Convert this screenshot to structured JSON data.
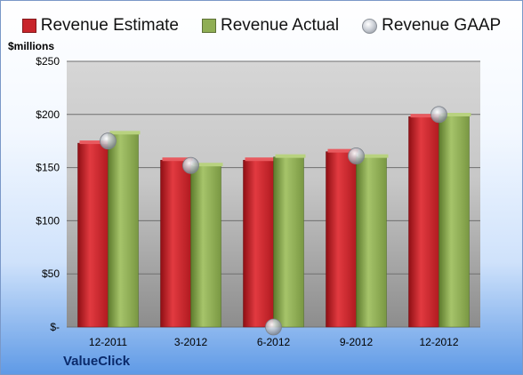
{
  "chart_data": {
    "type": "bar",
    "categories": [
      "12-2011",
      "3-2012",
      "6-2012",
      "9-2012",
      "12-2012"
    ],
    "series": [
      {
        "name": "Revenue Estimate",
        "values": [
          173,
          157,
          157,
          165,
          198
        ],
        "color": "#c8252b"
      },
      {
        "name": "Revenue Actual",
        "values": [
          182,
          152,
          160,
          160,
          199
        ],
        "color": "#8fae54"
      },
      {
        "name": "Revenue GAAP",
        "values": [
          175,
          152,
          0,
          161,
          200
        ],
        "color": "#b8bcc4",
        "marker": "circle"
      }
    ],
    "ylabel": "$millions",
    "ylim": [
      0,
      250
    ],
    "yticks": [
      0,
      50,
      100,
      150,
      200,
      250
    ],
    "ytick_labels": [
      "$-",
      "$50",
      "$100",
      "$150",
      "$200",
      "$250"
    ],
    "legend_position": "top",
    "grid": true
  },
  "footer": {
    "company": "ValueClick"
  }
}
